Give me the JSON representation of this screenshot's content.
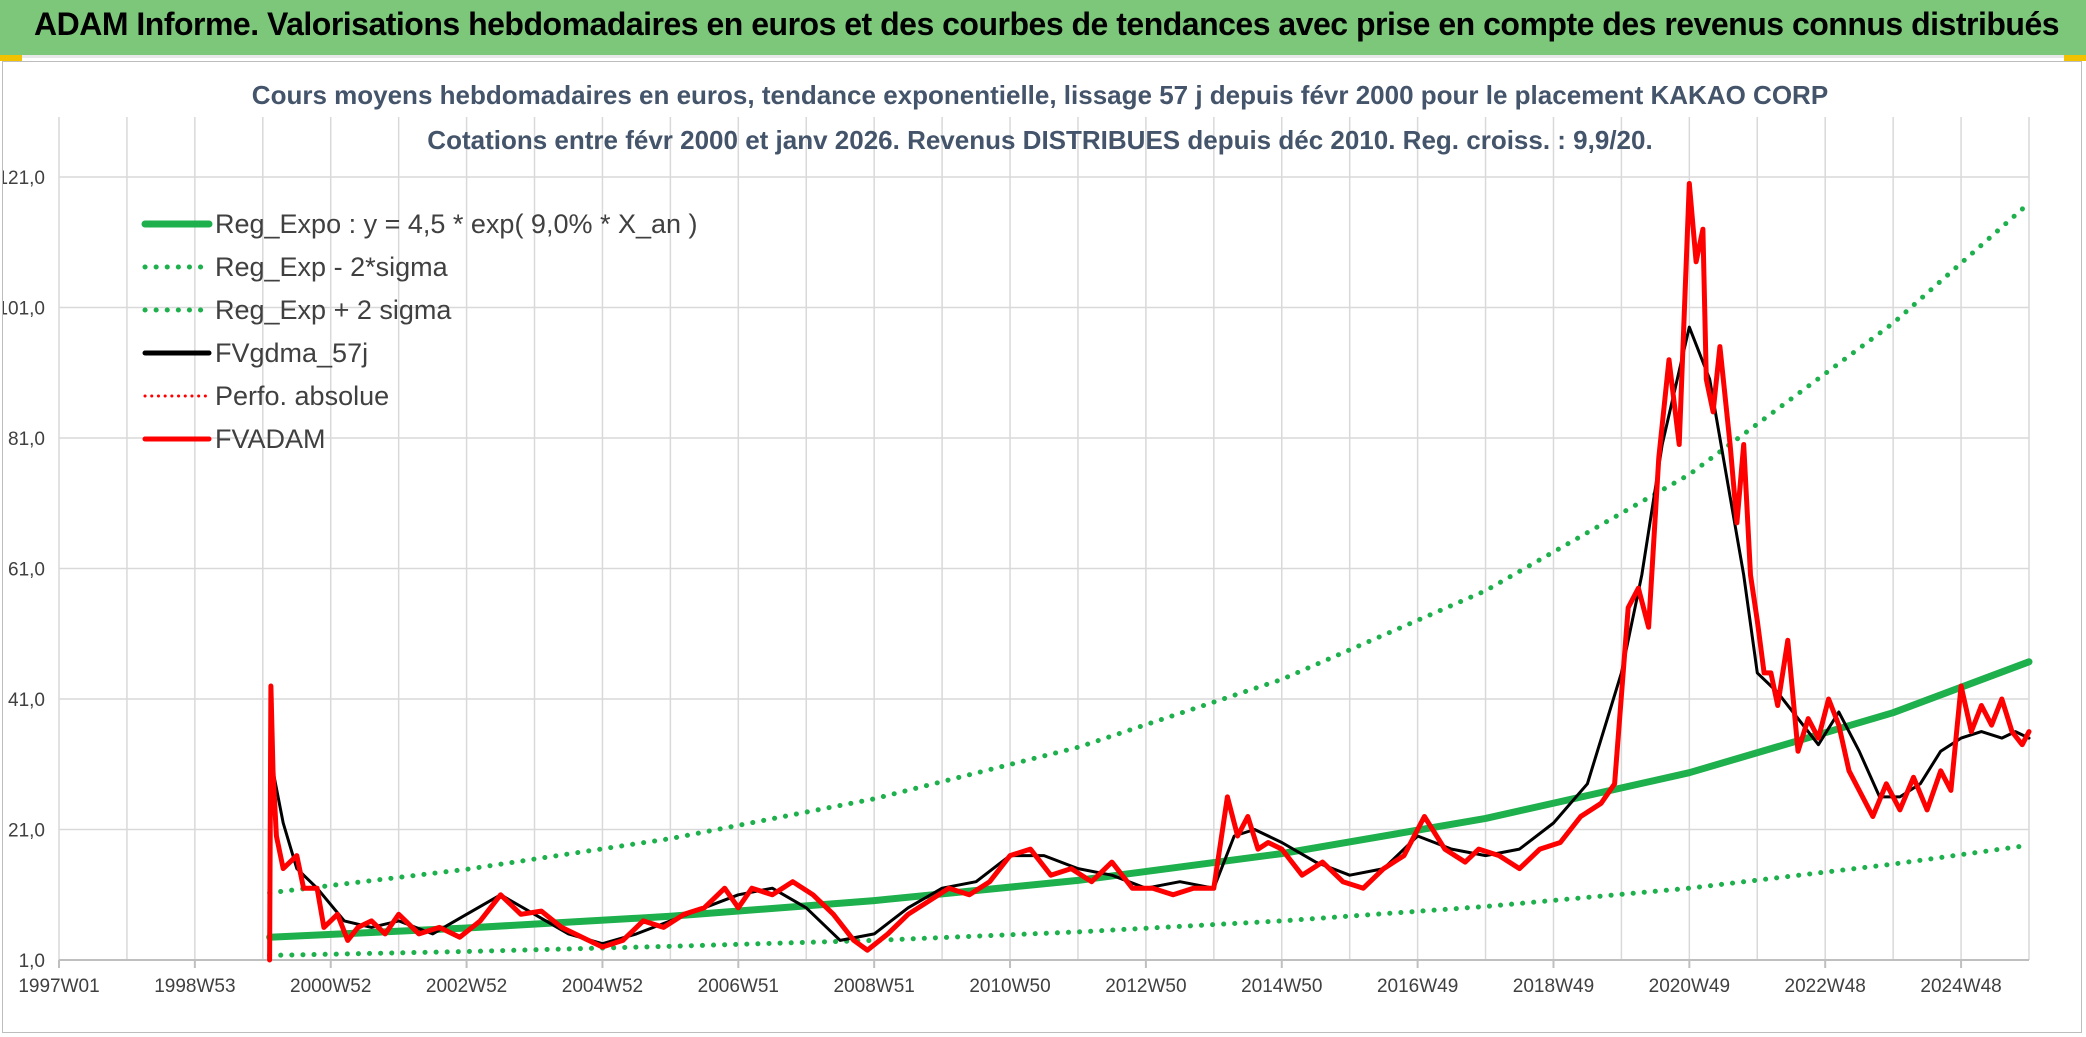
{
  "banner": {
    "title": "ADAM Informe. Valorisations hebdomadaires en euros et des courbes de tendances avec prise en compte des revenus connus distribués"
  },
  "colors": {
    "banner_bg": "#7dc77b",
    "reg_green": "#1db04c",
    "red": "#ff0000",
    "black": "#000000",
    "grid": "#d9d9d9",
    "title_color": "#44546a"
  },
  "chart_data": {
    "type": "line",
    "title": "Cours moyens hebdomadaires en euros, tendance exponentielle, lissage 57 j depuis févr 2000 pour le placement KAKAO CORP",
    "subtitle": "Cotations entre févr 2000 et janv 2026. Revenus DISTRIBUES depuis déc 2010. Reg. croiss. : 9,9/20.",
    "xlabel": "",
    "ylabel": "",
    "x_unit": "year",
    "xlim": [
      1997.0,
      2026.0
    ],
    "ylim": [
      1.0,
      121.0
    ],
    "y_ticks": [
      1,
      21,
      41,
      61,
      81,
      101,
      121
    ],
    "y_tick_labels": [
      "1,0",
      "21,0",
      "41,0",
      "61,0",
      "81,0",
      "101,0",
      "121,0"
    ],
    "x_ticks": [
      {
        "label": "1997W01",
        "x": 1997.0
      },
      {
        "label": "1998W53",
        "x": 1999.0
      },
      {
        "label": "2000W52",
        "x": 2001.0
      },
      {
        "label": "2002W52",
        "x": 2003.0
      },
      {
        "label": "2004W52",
        "x": 2005.0
      },
      {
        "label": "2006W51",
        "x": 2007.0
      },
      {
        "label": "2008W51",
        "x": 2009.0
      },
      {
        "label": "2010W50",
        "x": 2011.0
      },
      {
        "label": "2012W50",
        "x": 2013.0
      },
      {
        "label": "2014W50",
        "x": 2015.0
      },
      {
        "label": "2016W49",
        "x": 2017.0
      },
      {
        "label": "2018W49",
        "x": 2019.0
      },
      {
        "label": "2020W49",
        "x": 2021.0
      },
      {
        "label": "2022W48",
        "x": 2023.0
      },
      {
        "label": "2024W48",
        "x": 2025.0
      }
    ],
    "grid": true,
    "legend_position": "top-left",
    "series": [
      {
        "name": "Reg_Expo : y = 4,5 * exp( 9,0% *  X_an )",
        "style": "solid",
        "color": "#1db04c",
        "width": 7,
        "x": [
          2000.1,
          2003,
          2006,
          2009,
          2012,
          2015,
          2018,
          2021,
          2024,
          2026.0
        ],
        "y": [
          4.5,
          5.9,
          7.7,
          10.1,
          13.2,
          17.3,
          22.7,
          29.7,
          38.9,
          46.7
        ]
      },
      {
        "name": "Reg_Exp - 2*sigma",
        "style": "dotted",
        "color": "#1db04c",
        "width": 5,
        "x": [
          2000.1,
          2003,
          2006,
          2009,
          2012,
          2015,
          2018,
          2021,
          2024,
          2026.0
        ],
        "y": [
          1.7,
          2.3,
          3.1,
          4.0,
          5.3,
          7.0,
          9.2,
          12.0,
          15.7,
          18.6
        ]
      },
      {
        "name": "Reg_Exp + 2 sigma",
        "style": "dotted",
        "color": "#1db04c",
        "width": 5,
        "x": [
          2000.1,
          2003,
          2006,
          2009,
          2012,
          2015,
          2018,
          2021,
          2024,
          2026.0
        ],
        "y": [
          11.3,
          14.9,
          19.6,
          25.7,
          33.6,
          44.0,
          57.6,
          75.4,
          98.6,
          117.0
        ]
      },
      {
        "name": "FVgdma_57j",
        "style": "solid",
        "color": "#000000",
        "width": 3,
        "x": [
          2000.15,
          2000.3,
          2000.5,
          2000.8,
          2001.2,
          2001.6,
          2002.0,
          2002.5,
          2003.0,
          2003.5,
          2004.0,
          2004.5,
          2005.0,
          2005.5,
          2006.0,
          2006.5,
          2007.0,
          2007.5,
          2008.0,
          2008.5,
          2009.0,
          2009.5,
          2010.0,
          2010.5,
          2011.0,
          2011.5,
          2012.0,
          2012.5,
          2013.0,
          2013.5,
          2014.0,
          2014.3,
          2014.6,
          2015.0,
          2015.5,
          2016.0,
          2016.5,
          2017.0,
          2017.5,
          2018.0,
          2018.5,
          2019.0,
          2019.5,
          2020.0,
          2020.3,
          2020.6,
          2021.0,
          2021.3,
          2021.6,
          2021.8,
          2022.0,
          2022.3,
          2022.6,
          2022.9,
          2023.2,
          2023.5,
          2023.8,
          2024.1,
          2024.4,
          2024.7,
          2025.0,
          2025.3,
          2025.6,
          2025.8,
          2026.0
        ],
        "y": [
          30,
          22,
          15,
          12,
          7,
          6,
          7,
          5,
          8,
          11,
          8,
          5,
          3.5,
          5,
          7,
          9,
          11,
          12,
          9,
          4,
          5,
          9,
          12,
          13,
          17,
          17,
          15,
          14,
          12,
          13,
          12,
          20,
          21,
          19,
          16,
          14,
          15,
          20,
          18,
          17,
          18,
          22,
          28,
          45,
          60,
          80,
          98,
          90,
          72,
          60,
          45,
          42,
          38,
          34,
          39,
          33,
          26,
          26,
          28,
          33,
          35,
          36,
          35,
          36,
          35
        ]
      },
      {
        "name": "Perfo. absolue",
        "style": "dotted",
        "color": "#ff0000",
        "width": 3,
        "x": [],
        "y": []
      },
      {
        "name": "FVADAM",
        "style": "solid",
        "color": "#ff0000",
        "width": 5,
        "x": [
          2000.1,
          2000.12,
          2000.15,
          2000.2,
          2000.3,
          2000.5,
          2000.6,
          2000.8,
          2000.9,
          2001.1,
          2001.25,
          2001.4,
          2001.6,
          2001.8,
          2002.0,
          2002.3,
          2002.6,
          2002.9,
          2003.2,
          2003.5,
          2003.8,
          2004.1,
          2004.4,
          2004.7,
          2005.0,
          2005.3,
          2005.6,
          2005.9,
          2006.2,
          2006.5,
          2006.8,
          2007.0,
          2007.2,
          2007.5,
          2007.8,
          2008.1,
          2008.4,
          2008.7,
          2008.9,
          2009.2,
          2009.5,
          2009.8,
          2010.1,
          2010.4,
          2010.7,
          2011.0,
          2011.3,
          2011.6,
          2011.9,
          2012.2,
          2012.5,
          2012.8,
          2013.1,
          2013.4,
          2013.7,
          2014.0,
          2014.2,
          2014.35,
          2014.5,
          2014.65,
          2014.8,
          2015.0,
          2015.3,
          2015.6,
          2015.9,
          2016.2,
          2016.5,
          2016.8,
          2017.1,
          2017.4,
          2017.7,
          2017.9,
          2018.2,
          2018.5,
          2018.8,
          2019.1,
          2019.4,
          2019.7,
          2019.9,
          2020.1,
          2020.25,
          2020.4,
          2020.55,
          2020.7,
          2020.85,
          2021.0,
          2021.1,
          2021.2,
          2021.25,
          2021.35,
          2021.45,
          2021.6,
          2021.7,
          2021.8,
          2021.9,
          2022.0,
          2022.1,
          2022.2,
          2022.3,
          2022.45,
          2022.6,
          2022.75,
          2022.9,
          2023.05,
          2023.2,
          2023.35,
          2023.5,
          2023.7,
          2023.9,
          2024.1,
          2024.3,
          2024.5,
          2024.7,
          2024.85,
          2025.0,
          2025.15,
          2025.3,
          2025.45,
          2025.6,
          2025.75,
          2025.9,
          2026.0
        ],
        "y": [
          1.0,
          43.0,
          30.0,
          20.0,
          15.0,
          17.0,
          12.0,
          12.0,
          6.0,
          8.0,
          4.0,
          6.0,
          7.0,
          5.0,
          8.0,
          5.0,
          6.0,
          4.5,
          7.0,
          11.0,
          8.0,
          8.5,
          6.0,
          4.5,
          3.0,
          4.0,
          7.0,
          6.0,
          8.0,
          9.0,
          12.0,
          9.0,
          12.0,
          11.0,
          13.0,
          11.0,
          8.0,
          4.0,
          2.5,
          5.0,
          8.0,
          10.0,
          12.0,
          11.0,
          13.0,
          17.0,
          18.0,
          14.0,
          15.0,
          13.0,
          16.0,
          12.0,
          12.0,
          11.0,
          12.0,
          12.0,
          26.0,
          20.0,
          23.0,
          18.0,
          19.0,
          18.0,
          14.0,
          16.0,
          13.0,
          12.0,
          15.0,
          17.0,
          23.0,
          18.0,
          16.0,
          18.0,
          17.0,
          15.0,
          18.0,
          19.0,
          23.0,
          25.0,
          28.0,
          55.0,
          58.0,
          52.0,
          78.0,
          93.0,
          80.0,
          120.0,
          108.0,
          113.0,
          90.0,
          85.0,
          95.0,
          80.0,
          68.0,
          80.0,
          60.0,
          53.0,
          45.0,
          45.0,
          40.0,
          50.0,
          33.0,
          38.0,
          35.0,
          41.0,
          37.0,
          30.0,
          27.0,
          23.0,
          28.0,
          24.0,
          29.0,
          24.0,
          30.0,
          27.0,
          43.0,
          36.0,
          40.0,
          37.0,
          41.0,
          36.0,
          34.0,
          36.0
        ]
      }
    ]
  }
}
